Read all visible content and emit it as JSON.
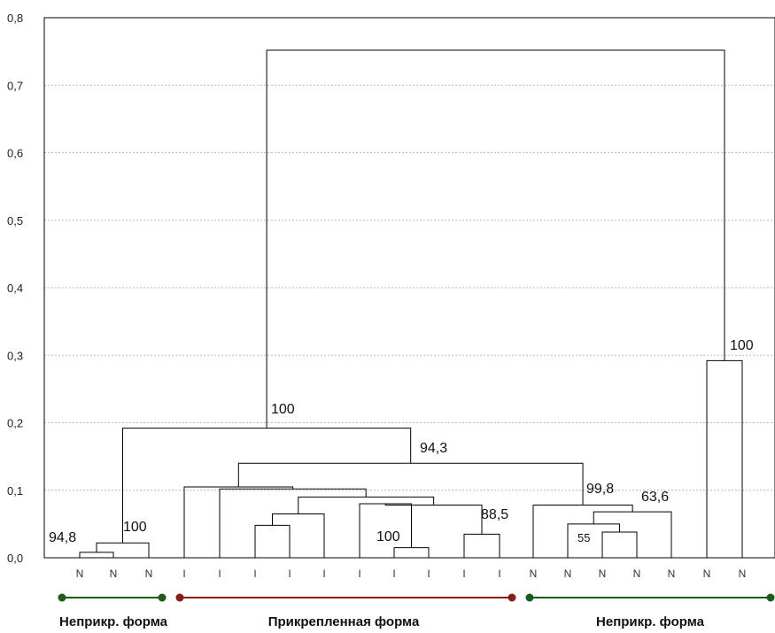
{
  "chart_data": {
    "type": "dendrogram",
    "ylim": [
      0,
      0.8
    ],
    "y_ticks": [
      "0,0",
      "0,1",
      "0,2",
      "0,3",
      "0,4",
      "0,5",
      "0,6",
      "0,7",
      "0,8"
    ],
    "grid": true,
    "leaves": [
      "N",
      "N",
      "N",
      "I",
      "I",
      "I",
      "I",
      "I",
      "I",
      "I",
      "I",
      "I",
      "I",
      "N",
      "N",
      "N",
      "N",
      "N",
      "N",
      "N"
    ],
    "bootstrap_labels": [
      "94,8",
      "100",
      "100",
      "100",
      "94,3",
      "88,5",
      "99,8",
      "63,6",
      "55",
      "100"
    ],
    "groups": [
      {
        "label": "Неприкр. форма",
        "color": "#1a5c1a"
      },
      {
        "label": "Прикрепленная форма",
        "color": "#8b1a1a"
      },
      {
        "label": "Неприкр. форма",
        "color": "#1a5c1a"
      }
    ]
  }
}
